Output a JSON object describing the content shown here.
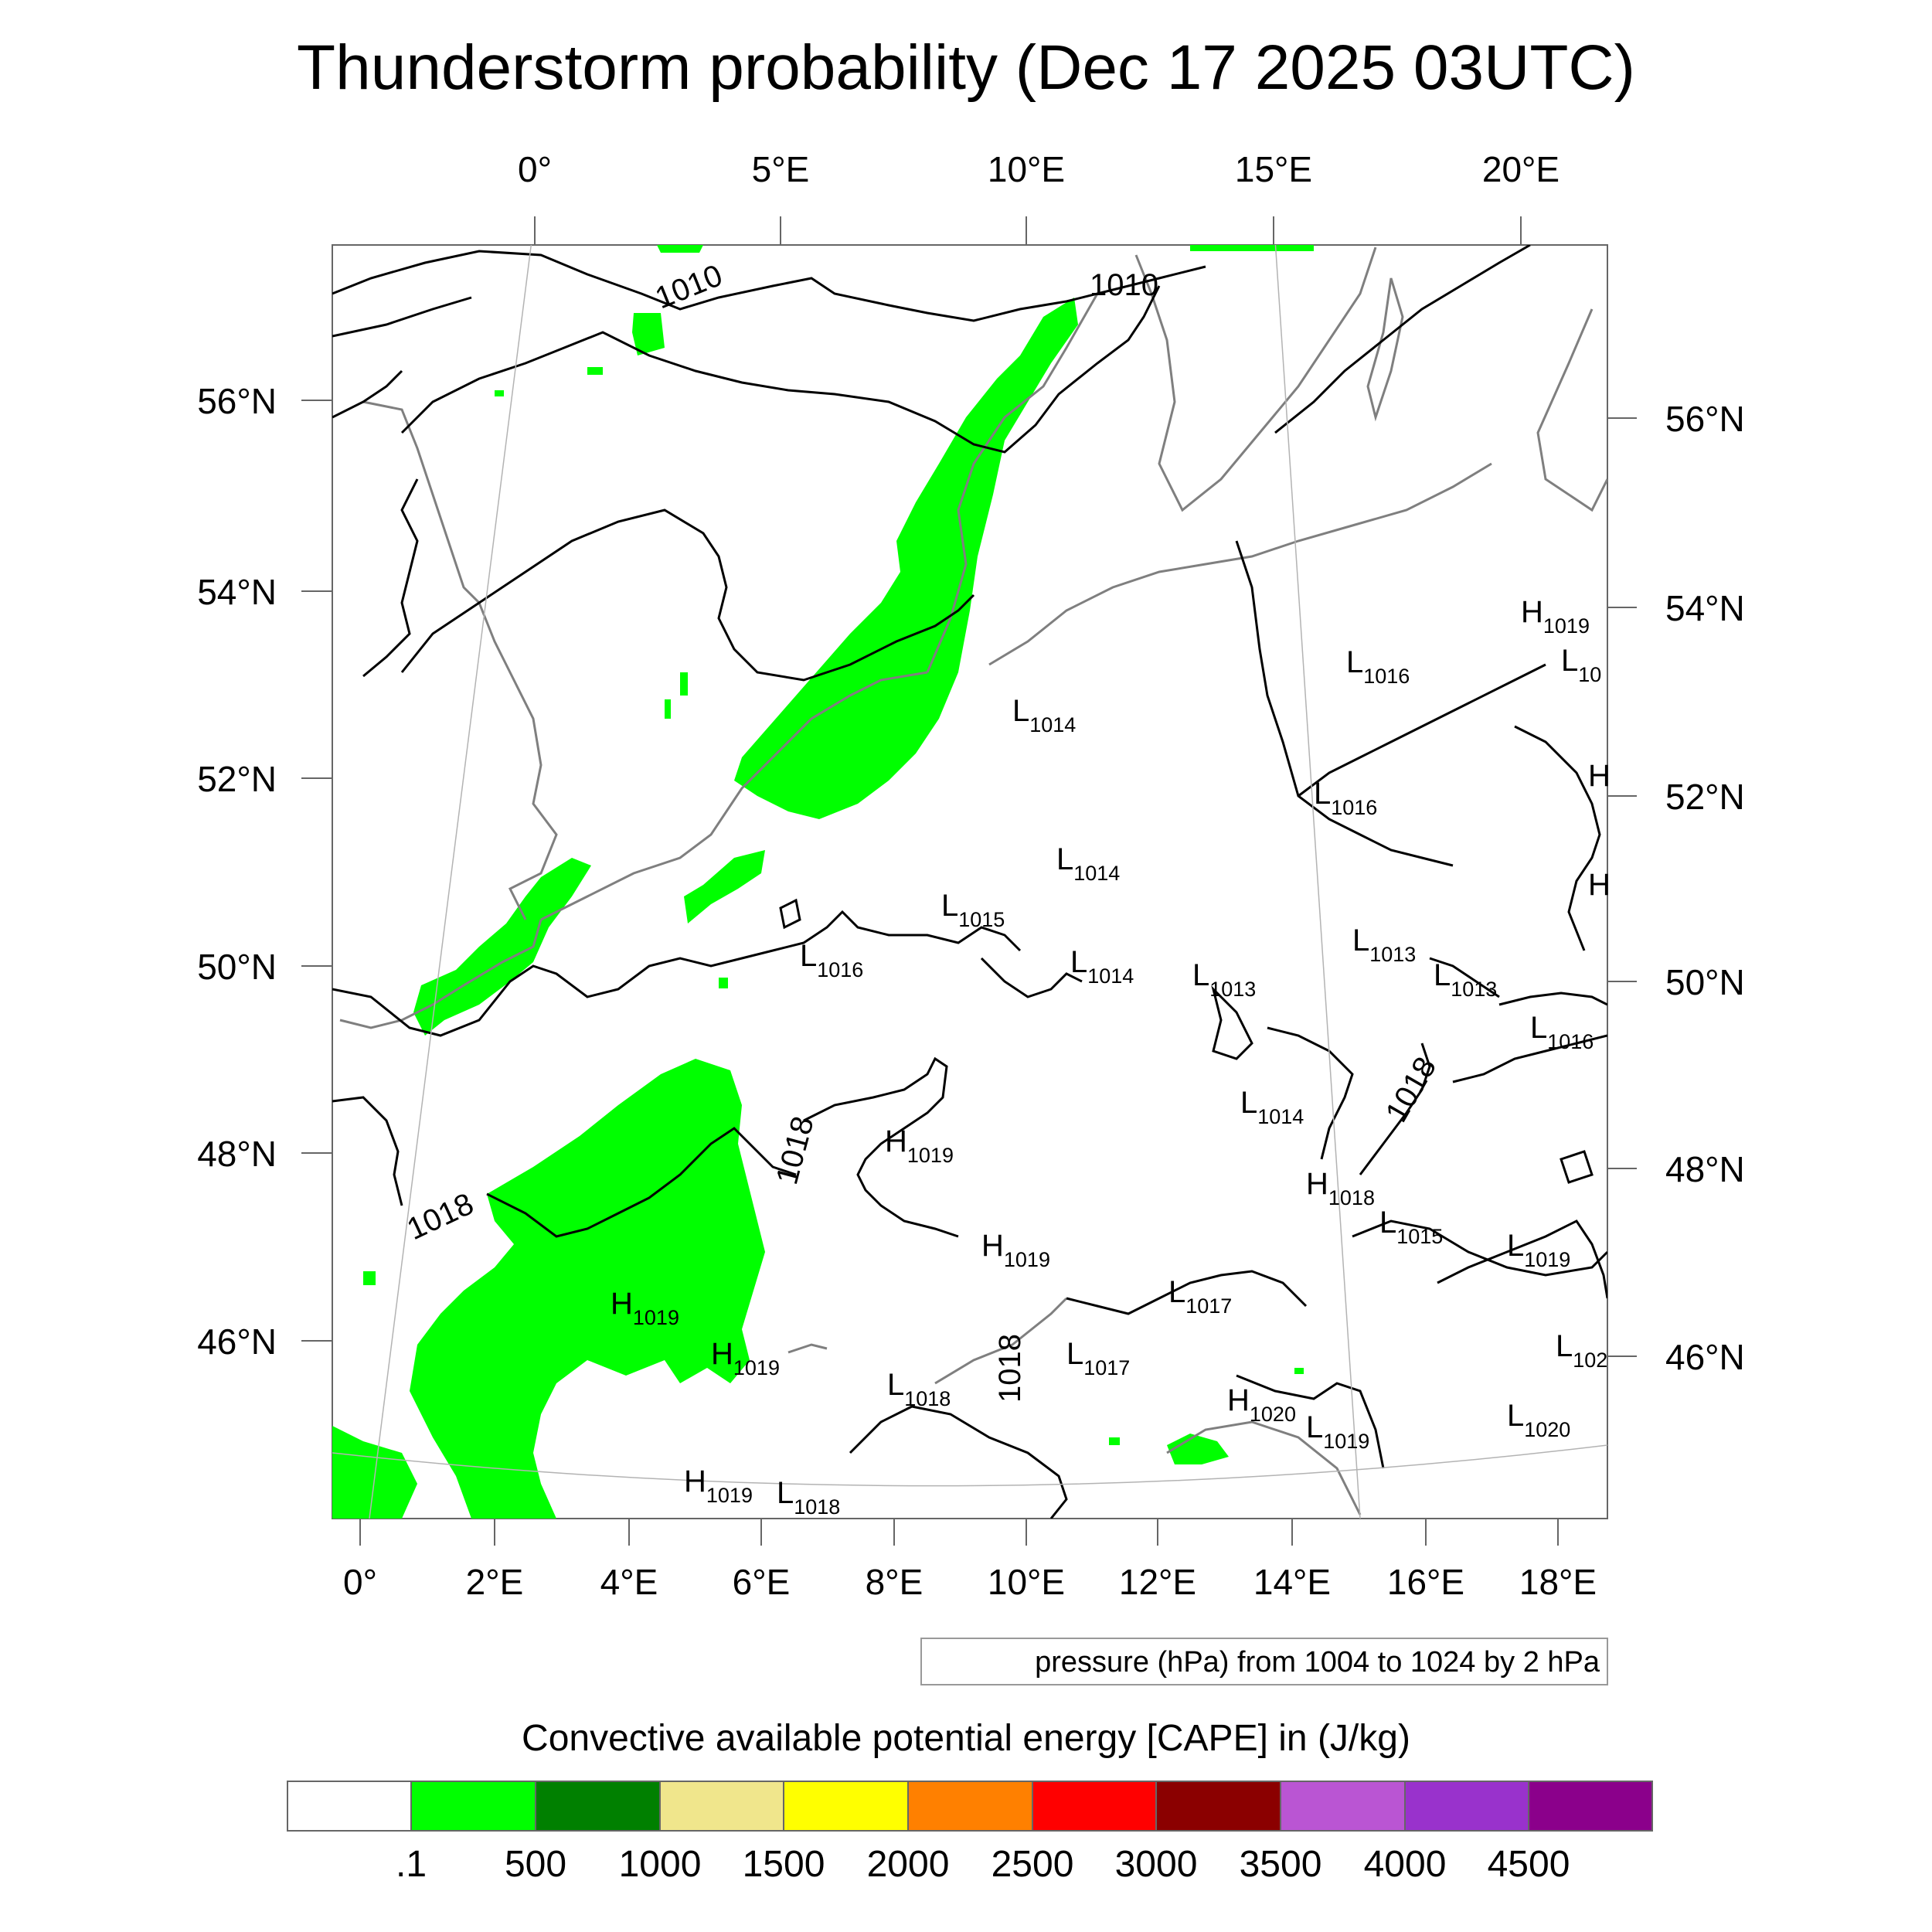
{
  "title": "Thunderstorm probability (Dec 17 2025 03UTC)",
  "top_lon_labels": [
    "0°",
    "5°E",
    "10°E",
    "15°E",
    "20°E"
  ],
  "bottom_lon_labels": [
    "0°",
    "2°E",
    "4°E",
    "6°E",
    "8°E",
    "10°E",
    "12°E",
    "14°E",
    "16°E",
    "18°E"
  ],
  "left_lat_labels": [
    "56°N",
    "54°N",
    "52°N",
    "50°N",
    "48°N",
    "46°N"
  ],
  "right_lat_labels": [
    "56°N",
    "54°N",
    "52°N",
    "50°N",
    "48°N",
    "46°N"
  ],
  "contour_labels": [
    "1010",
    "1010",
    "1018",
    "1018",
    "1018",
    "1018"
  ],
  "pressure_centers": [
    {
      "t": "H",
      "v": "1019"
    },
    {
      "t": "L",
      "v": "10"
    },
    {
      "t": "L",
      "v": "1016"
    },
    {
      "t": "L",
      "v": "1014"
    },
    {
      "t": "H",
      "v": ""
    },
    {
      "t": "L",
      "v": "1016"
    },
    {
      "t": "L",
      "v": "1014"
    },
    {
      "t": "H",
      "v": ""
    },
    {
      "t": "L",
      "v": "1015"
    },
    {
      "t": "L",
      "v": "1016"
    },
    {
      "t": "L",
      "v": "1014"
    },
    {
      "t": "L",
      "v": "1013"
    },
    {
      "t": "L",
      "v": "1013"
    },
    {
      "t": "L",
      "v": "1013"
    },
    {
      "t": "L",
      "v": "1016"
    },
    {
      "t": "L",
      "v": "1014"
    },
    {
      "t": "H",
      "v": "1019"
    },
    {
      "t": "H",
      "v": "1018"
    },
    {
      "t": "L",
      "v": "1015"
    },
    {
      "t": "H",
      "v": "1019"
    },
    {
      "t": "L",
      "v": "1019"
    },
    {
      "t": "L",
      "v": "1017"
    },
    {
      "t": "H",
      "v": "1019"
    },
    {
      "t": "H",
      "v": "1019"
    },
    {
      "t": "L",
      "v": "1017"
    },
    {
      "t": "L",
      "v": "102"
    },
    {
      "t": "L",
      "v": "1018"
    },
    {
      "t": "H",
      "v": "1020"
    },
    {
      "t": "L",
      "v": "1019"
    },
    {
      "t": "L",
      "v": "1020"
    },
    {
      "t": "H",
      "v": "1019"
    },
    {
      "t": "L",
      "v": "1018"
    }
  ],
  "pressure_note": "pressure (hPa) from 1004 to 1024 by 2 hPa",
  "colorbar_title": "Convective available potential energy [CAPE] in (J/kg)",
  "colorbar_colors": [
    "#ffffff",
    "#00ff00",
    "#008000",
    "#f0e68c",
    "#ffff00",
    "#ff8000",
    "#ff0000",
    "#8b0000",
    "#ba55d3",
    "#9932cc",
    "#8b008b"
  ],
  "colorbar_ticks": [
    ".1",
    "500",
    "1000",
    "1500",
    "2000",
    "2500",
    "3000",
    "3500",
    "4000",
    "4500"
  ]
}
